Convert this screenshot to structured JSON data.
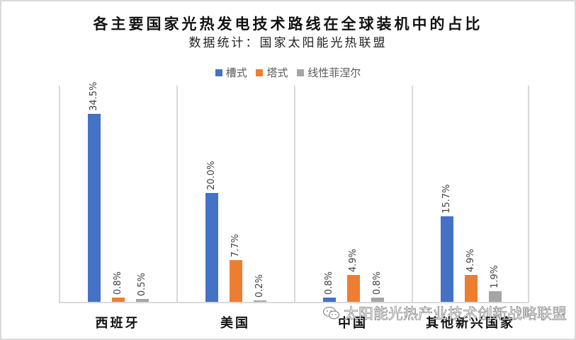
{
  "header": {
    "title": "各主要国家光热发电技术路线在全球装机中的占比",
    "subtitle": "数据统计：国家太阳能光热联盟"
  },
  "legend": [
    {
      "label": "槽式",
      "color": "#4472C4"
    },
    {
      "label": "塔式",
      "color": "#ED7D31"
    },
    {
      "label": "线性菲涅尔",
      "color": "#A5A5A5"
    }
  ],
  "categories": [
    "西班牙",
    "美国",
    "中国",
    "其他新兴国家"
  ],
  "watermark": {
    "icon": "wechat-icon",
    "text": "太阳能光热产业技术创新战略联盟"
  },
  "chart_data": {
    "type": "bar",
    "title": "各主要国家光热发电技术路线在全球装机中的占比",
    "subtitle": "数据统计：国家太阳能光热联盟",
    "categories": [
      "西班牙",
      "美国",
      "中国",
      "其他新兴国家"
    ],
    "series": [
      {
        "name": "槽式",
        "color": "#4472C4",
        "values": [
          34.5,
          20.0,
          0.8,
          15.7
        ],
        "labels": [
          "34.5%",
          "20.0%",
          "0.8%",
          "15.7%"
        ]
      },
      {
        "name": "塔式",
        "color": "#ED7D31",
        "values": [
          0.8,
          7.7,
          4.9,
          4.9
        ],
        "labels": [
          "0.8%",
          "7.7%",
          "4.9%",
          "4.9%"
        ]
      },
      {
        "name": "线性菲涅尔",
        "color": "#A5A5A5",
        "values": [
          0.5,
          0.2,
          0.8,
          1.9
        ],
        "labels": [
          "0.5%",
          "0.2%",
          "0.8%",
          "1.9%"
        ]
      }
    ],
    "xlabel": "",
    "ylabel": "",
    "unit": "%",
    "ylim": [
      0,
      40
    ],
    "grid": false,
    "legend_position": "top",
    "data_labels": "rotated-vertical"
  }
}
